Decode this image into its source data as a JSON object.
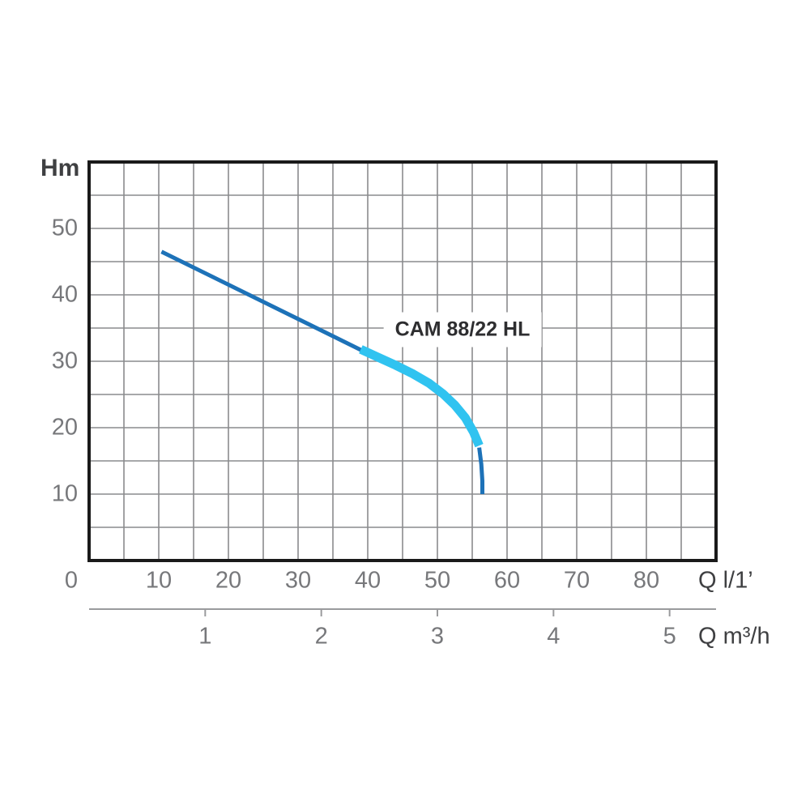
{
  "page": {
    "background": "#ffffff"
  },
  "chart_data": {
    "type": "line",
    "title": "CAM 88/22 HL",
    "y_axis": {
      "label": "Hm",
      "min": 0,
      "max": 60,
      "grid_step": 5,
      "tick_values": [
        10,
        20,
        30,
        40,
        50
      ]
    },
    "x_axis": {
      "label": "Q l/1’",
      "min": 0,
      "max": 90,
      "grid_step": 5,
      "tick_values": [
        0,
        10,
        20,
        30,
        40,
        50,
        60,
        70,
        80
      ]
    },
    "x_axis_secondary": {
      "label": "Q m³/h",
      "tick_values": [
        1,
        2,
        3,
        4,
        5
      ],
      "liters_per_minute_per_unit": 16.6667
    },
    "series": [
      {
        "name": "head-curve-upper",
        "color": "#1d72b8",
        "stroke_width": 5,
        "points": [
          [
            10.4,
            46.5
          ],
          [
            40.0,
            31.2
          ]
        ]
      },
      {
        "name": "head-curve-highlight",
        "color": "#30c3f0",
        "stroke_width": 11,
        "points": [
          [
            39.0,
            31.8
          ],
          [
            41.5,
            30.6
          ],
          [
            44.0,
            29.4
          ],
          [
            46.5,
            28.1
          ],
          [
            48.8,
            26.7
          ],
          [
            50.8,
            25.1
          ],
          [
            52.5,
            23.4
          ],
          [
            54.0,
            21.5
          ],
          [
            55.2,
            19.3
          ],
          [
            56.0,
            17.3
          ]
        ]
      },
      {
        "name": "head-curve-tail",
        "color": "#1d72b8",
        "stroke_width": 5,
        "points": [
          [
            56.0,
            17.0
          ],
          [
            56.3,
            14.5
          ],
          [
            56.45,
            12.0
          ],
          [
            56.45,
            10.0
          ]
        ]
      }
    ],
    "style": {
      "grid_color": "#8a8b8d",
      "border_color": "#1a1a1a",
      "secondary_axis_color": "#9a9b9d",
      "tick_label_color": "#77787b",
      "axis_unit_label_color": "#3f4042",
      "title_color": "#2e2e30",
      "legend": "none",
      "grid": "on"
    }
  }
}
